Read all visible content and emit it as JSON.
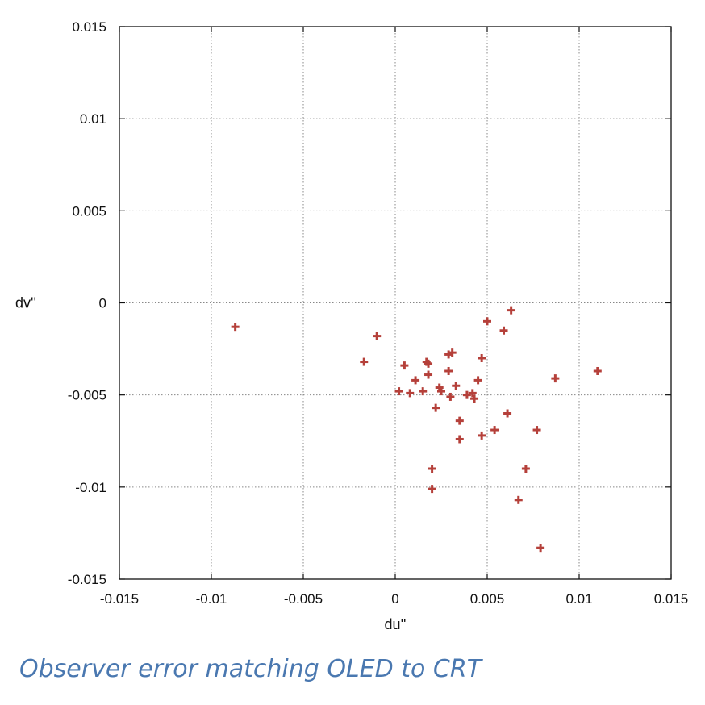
{
  "caption": "Observer error matching OLED to CRT",
  "colors": {
    "marker": "#b5403a",
    "grid": "#888888",
    "axis": "#111111",
    "caption": "#4a78b0"
  },
  "chart_data": {
    "type": "scatter",
    "title": "",
    "xlabel": "du''",
    "ylabel": "dv''",
    "xlim": [
      -0.015,
      0.015
    ],
    "ylim": [
      -0.015,
      0.015
    ],
    "xticks": [
      "-0.015",
      "-0.01",
      "-0.005",
      "0",
      "0.005",
      "0.01",
      "0.015"
    ],
    "yticks": [
      "0.015",
      "0.01",
      "0.005",
      "0",
      "-0.005",
      "-0.01",
      "-0.015"
    ],
    "grid": true,
    "legend": "none",
    "marker": "plus",
    "points": [
      [
        -0.0087,
        -0.0013
      ],
      [
        -0.001,
        -0.0018
      ],
      [
        -0.0017,
        -0.0032
      ],
      [
        0.0002,
        -0.0048
      ],
      [
        0.0005,
        -0.0034
      ],
      [
        0.0008,
        -0.0049
      ],
      [
        0.0011,
        -0.0042
      ],
      [
        0.0015,
        -0.0048
      ],
      [
        0.0017,
        -0.0032
      ],
      [
        0.0018,
        -0.0033
      ],
      [
        0.0018,
        -0.0039
      ],
      [
        0.002,
        -0.009
      ],
      [
        0.002,
        -0.0101
      ],
      [
        0.0022,
        -0.0057
      ],
      [
        0.0024,
        -0.0046
      ],
      [
        0.0025,
        -0.0048
      ],
      [
        0.0029,
        -0.0028
      ],
      [
        0.0029,
        -0.0037
      ],
      [
        0.003,
        -0.0051
      ],
      [
        0.0031,
        -0.0027
      ],
      [
        0.0033,
        -0.0045
      ],
      [
        0.0035,
        -0.0064
      ],
      [
        0.0035,
        -0.0074
      ],
      [
        0.0039,
        -0.005
      ],
      [
        0.0042,
        -0.0049
      ],
      [
        0.0043,
        -0.0052
      ],
      [
        0.0045,
        -0.0042
      ],
      [
        0.0047,
        -0.003
      ],
      [
        0.0047,
        -0.0072
      ],
      [
        0.005,
        -0.001
      ],
      [
        0.0054,
        -0.0069
      ],
      [
        0.0059,
        -0.0015
      ],
      [
        0.0061,
        -0.006
      ],
      [
        0.0063,
        -0.0004
      ],
      [
        0.0067,
        -0.0107
      ],
      [
        0.0071,
        -0.009
      ],
      [
        0.0077,
        -0.0069
      ],
      [
        0.0079,
        -0.0133
      ],
      [
        0.0087,
        -0.0041
      ],
      [
        0.011,
        -0.0037
      ]
    ]
  }
}
